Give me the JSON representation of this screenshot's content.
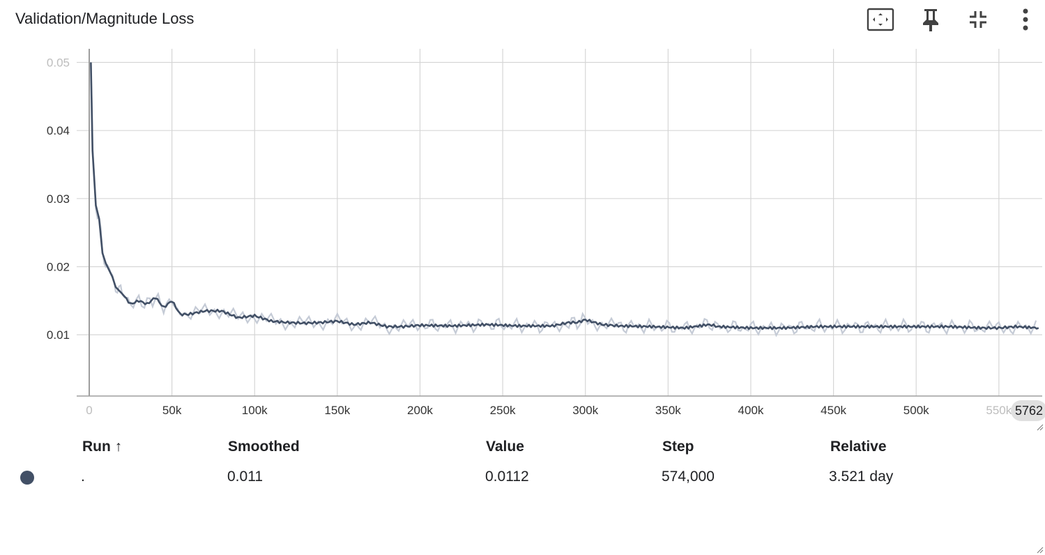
{
  "card": {
    "title": "Validation/Magnitude Loss",
    "toolbar": [
      {
        "name": "fit-domain-icon"
      },
      {
        "name": "pin-icon"
      },
      {
        "name": "collapse-icon"
      },
      {
        "name": "more-vert-icon"
      }
    ]
  },
  "colors": {
    "series": "#425066",
    "series_raw": "#c5cbd6",
    "grid": "#d6d6d6",
    "axis": "#9e9e9e"
  },
  "chart_data": {
    "type": "line",
    "title": "Validation/Magnitude Loss",
    "xlim": [
      0,
      576200
    ],
    "ylim": [
      0.001,
      0.052
    ],
    "x_ticks": [
      0,
      50000,
      100000,
      150000,
      200000,
      250000,
      300000,
      350000,
      400000,
      450000,
      500000,
      550000
    ],
    "x_tick_labels": [
      "0",
      "50k",
      "100k",
      "150k",
      "200k",
      "250k",
      "300k",
      "350k",
      "400k",
      "450k",
      "500k",
      "550k"
    ],
    "y_ticks": [
      0.01,
      0.02,
      0.03,
      0.04,
      0.05
    ],
    "y_tick_labels": [
      "0.01",
      "0.02",
      "0.03",
      "0.04",
      "0.05"
    ],
    "hover_step_label": "5762",
    "grid": true,
    "series": [
      {
        "x": [
          1000,
          2000,
          4000,
          6000,
          8000,
          10000,
          12000,
          14000,
          16000,
          18000,
          20000,
          25000,
          30000,
          35000,
          40000,
          45000,
          50000,
          55000,
          60000,
          70000,
          80000,
          90000,
          100000,
          110000,
          120000,
          130000,
          140000,
          150000,
          160000,
          170000,
          180000,
          190000,
          200000,
          220000,
          240000,
          260000,
          280000,
          290000,
          295000,
          300000,
          310000,
          320000,
          340000,
          360000,
          375000,
          380000,
          400000,
          420000,
          440000,
          460000,
          480000,
          500000,
          520000,
          540000,
          550000,
          560000,
          574000
        ],
        "y": [
          0.05,
          0.037,
          0.029,
          0.027,
          0.022,
          0.0205,
          0.0195,
          0.0185,
          0.017,
          0.0165,
          0.016,
          0.0145,
          0.015,
          0.0145,
          0.0155,
          0.014,
          0.015,
          0.013,
          0.013,
          0.0135,
          0.0135,
          0.0125,
          0.0128,
          0.012,
          0.0118,
          0.0117,
          0.0118,
          0.012,
          0.0115,
          0.0118,
          0.0112,
          0.0112,
          0.0114,
          0.0113,
          0.0115,
          0.0113,
          0.0113,
          0.0118,
          0.0118,
          0.0122,
          0.0115,
          0.0113,
          0.0112,
          0.011,
          0.0115,
          0.0112,
          0.011,
          0.011,
          0.0112,
          0.0112,
          0.0112,
          0.0112,
          0.0112,
          0.011,
          0.011,
          0.0112,
          0.011
        ]
      }
    ]
  },
  "table": {
    "headers": {
      "run": "Run ↑",
      "smoothed": "Smoothed",
      "value": "Value",
      "step": "Step",
      "relative": "Relative"
    },
    "rows": [
      {
        "run": ".",
        "smoothed": "0.011",
        "value": "0.0112",
        "step": "574,000",
        "relative": "3.521 day"
      }
    ]
  }
}
